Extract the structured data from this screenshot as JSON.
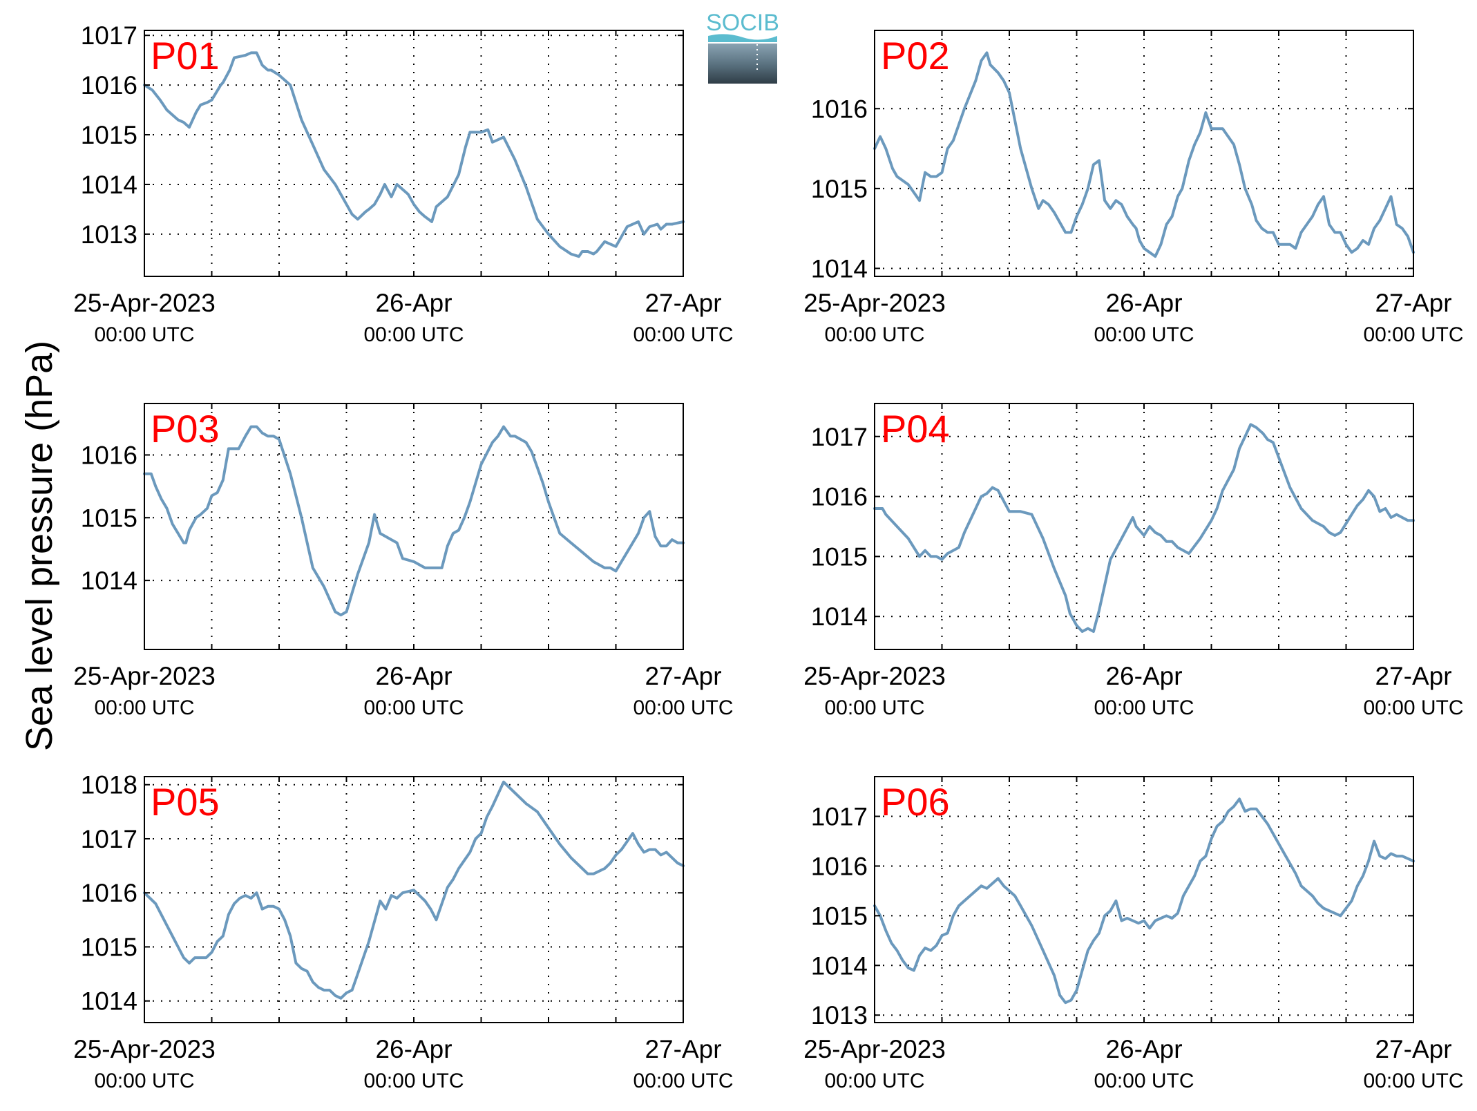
{
  "ylabel": "Sea level pressure (hPa)",
  "logo": {
    "text": "SOCIB",
    "color_top": "#5bbccf",
    "color_bottom": "#2f3d47"
  },
  "colors": {
    "line": "#6b99bd",
    "panel_label": "#ff0000",
    "axes": "#000000",
    "grid": "#000000"
  },
  "x_ticks": [
    {
      "value": 0,
      "label": "25-Apr-2023",
      "sub": "00:00 UTC"
    },
    {
      "value": 24,
      "label": "26-Apr",
      "sub": "00:00 UTC"
    },
    {
      "value": 48,
      "label": "27-Apr",
      "sub": "00:00 UTC"
    }
  ],
  "x_unit": "hours since 25-Apr-2023 00:00 UTC",
  "chart_data": [
    {
      "type": "line",
      "title": "P01",
      "xlim": [
        0,
        48
      ],
      "ylim": [
        1012.15,
        1017.1
      ],
      "yticks": [
        1013,
        1014,
        1015,
        1016,
        1017
      ],
      "grid": true,
      "x": [
        0,
        0.7,
        1.4,
        2,
        3,
        3.5,
        4,
        4.6,
        5,
        5.6,
        6,
        6.8,
        7,
        7.6,
        8,
        9,
        9.5,
        10,
        10.5,
        11,
        11.3,
        12,
        13,
        14,
        15,
        16,
        17,
        18,
        18.5,
        19,
        19.7,
        20,
        20.5,
        21,
        21.4,
        22,
        22.5,
        23,
        23.5,
        24,
        24.5,
        25,
        25.6,
        26,
        27,
        28,
        28.6,
        29,
        29.6,
        30,
        30.6,
        31,
        32,
        33,
        34,
        35,
        36,
        37,
        38,
        38.7,
        39,
        39.5,
        40,
        40.3,
        41,
        42,
        43,
        44,
        44.5,
        45,
        45.7,
        46,
        46.5,
        47,
        48
      ],
      "y": [
        1016.0,
        1015.9,
        1015.7,
        1015.5,
        1015.3,
        1015.25,
        1015.15,
        1015.45,
        1015.6,
        1015.65,
        1015.7,
        1016.0,
        1016.05,
        1016.3,
        1016.55,
        1016.6,
        1016.65,
        1016.65,
        1016.4,
        1016.3,
        1016.3,
        1016.2,
        1016.0,
        1015.3,
        1014.8,
        1014.3,
        1014.0,
        1013.6,
        1013.4,
        1013.3,
        1013.45,
        1013.5,
        1013.6,
        1013.8,
        1014.0,
        1013.75,
        1014.0,
        1013.9,
        1013.8,
        1013.6,
        1013.45,
        1013.35,
        1013.25,
        1013.55,
        1013.75,
        1014.2,
        1014.75,
        1015.05,
        1015.05,
        1015.05,
        1015.1,
        1014.85,
        1014.95,
        1014.5,
        1013.95,
        1013.3,
        1013.0,
        1012.75,
        1012.6,
        1012.55,
        1012.65,
        1012.65,
        1012.6,
        1012.65,
        1012.85,
        1012.75,
        1013.15,
        1013.25,
        1013.0,
        1013.15,
        1013.2,
        1013.1,
        1013.2,
        1013.2,
        1013.25
      ]
    },
    {
      "type": "line",
      "title": "P02",
      "xlim": [
        0,
        48
      ],
      "ylim": [
        1013.9,
        1016.98
      ],
      "yticks": [
        1014,
        1015,
        1016
      ],
      "grid": true,
      "x": [
        0,
        0.5,
        1,
        1.6,
        2,
        3,
        3.5,
        4,
        4.5,
        5,
        5.5,
        6,
        6.5,
        7,
        8,
        9,
        9.5,
        10,
        10.3,
        11,
        11.5,
        12,
        13,
        14,
        14.6,
        15,
        15.5,
        16,
        17,
        17.5,
        18,
        18.5,
        19,
        19.5,
        20,
        20.5,
        21,
        21.5,
        22,
        22.5,
        23,
        23.3,
        23.6,
        24,
        24.5,
        25,
        25.5,
        26,
        26.5,
        27,
        27.4,
        28,
        28.5,
        29,
        29.5,
        30,
        30.5,
        31,
        32,
        32.5,
        33,
        33.6,
        34,
        34.5,
        35,
        35.5,
        36,
        37,
        37.5,
        38,
        38.5,
        39,
        39.5,
        40,
        40.5,
        41,
        41.5,
        42,
        42.5,
        43,
        43.5,
        44,
        44.5,
        45,
        45.5,
        46,
        46.5,
        47,
        47.5,
        48
      ],
      "y": [
        1015.5,
        1015.65,
        1015.5,
        1015.25,
        1015.15,
        1015.05,
        1014.95,
        1014.85,
        1015.2,
        1015.15,
        1015.15,
        1015.2,
        1015.5,
        1015.6,
        1016.0,
        1016.35,
        1016.6,
        1016.7,
        1016.55,
        1016.45,
        1016.35,
        1016.2,
        1015.5,
        1015.0,
        1014.75,
        1014.85,
        1014.8,
        1014.7,
        1014.45,
        1014.45,
        1014.65,
        1014.8,
        1015.0,
        1015.3,
        1015.35,
        1014.85,
        1014.75,
        1014.85,
        1014.8,
        1014.65,
        1014.55,
        1014.5,
        1014.35,
        1014.25,
        1014.2,
        1014.15,
        1014.3,
        1014.55,
        1014.65,
        1014.9,
        1015.0,
        1015.35,
        1015.55,
        1015.7,
        1015.95,
        1015.75,
        1015.75,
        1015.75,
        1015.55,
        1015.3,
        1015.0,
        1014.8,
        1014.6,
        1014.5,
        1014.45,
        1014.45,
        1014.3,
        1014.3,
        1014.25,
        1014.45,
        1014.55,
        1014.65,
        1014.8,
        1014.9,
        1014.55,
        1014.45,
        1014.45,
        1014.3,
        1014.2,
        1014.25,
        1014.35,
        1014.3,
        1014.5,
        1014.6,
        1014.75,
        1014.9,
        1014.55,
        1014.5,
        1014.4,
        1014.2
      ]
    },
    {
      "type": "line",
      "title": "P03",
      "xlim": [
        0,
        48
      ],
      "ylim": [
        1012.9,
        1016.82
      ],
      "yticks": [
        1014,
        1015,
        1016
      ],
      "grid": true,
      "x": [
        0,
        0.6,
        1,
        1.5,
        2,
        2.5,
        3,
        3.5,
        3.7,
        4,
        4.6,
        5,
        5.6,
        6,
        6.5,
        7,
        7.5,
        8,
        8.4,
        9,
        9.5,
        10,
        10.5,
        11,
        11.5,
        12,
        13,
        14,
        15,
        16,
        17,
        17.5,
        18,
        18.5,
        19,
        19.5,
        20,
        20.5,
        21,
        22,
        22.5,
        23,
        24,
        24.5,
        25,
        26,
        26.5,
        27,
        27.5,
        28,
        28.5,
        29,
        30,
        31,
        31.5,
        32,
        32.6,
        33,
        33.5,
        34,
        34.5,
        35,
        35.5,
        36,
        36.5,
        37,
        38,
        39,
        40,
        41,
        41.5,
        42,
        42.5,
        43,
        43.5,
        44,
        44.5,
        45,
        45.5,
        46,
        46.5,
        47,
        47.5,
        48
      ],
      "y": [
        1015.7,
        1015.7,
        1015.5,
        1015.3,
        1015.15,
        1014.9,
        1014.75,
        1014.6,
        1014.6,
        1014.8,
        1015.0,
        1015.05,
        1015.15,
        1015.35,
        1015.4,
        1015.6,
        1016.1,
        1016.1,
        1016.1,
        1016.3,
        1016.45,
        1016.45,
        1016.35,
        1016.3,
        1016.3,
        1016.25,
        1015.7,
        1015.0,
        1014.2,
        1013.9,
        1013.5,
        1013.45,
        1013.5,
        1013.8,
        1014.1,
        1014.35,
        1014.6,
        1015.05,
        1014.75,
        1014.65,
        1014.6,
        1014.35,
        1014.3,
        1014.25,
        1014.2,
        1014.2,
        1014.2,
        1014.55,
        1014.75,
        1014.8,
        1015.0,
        1015.25,
        1015.85,
        1016.2,
        1016.3,
        1016.45,
        1016.3,
        1016.3,
        1016.25,
        1016.2,
        1016.05,
        1015.8,
        1015.55,
        1015.25,
        1015.0,
        1014.75,
        1014.6,
        1014.45,
        1014.3,
        1014.2,
        1014.2,
        1014.15,
        1014.3,
        1014.45,
        1014.6,
        1014.75,
        1015.0,
        1015.1,
        1014.7,
        1014.55,
        1014.55,
        1014.65,
        1014.6,
        1014.6
      ]
    },
    {
      "type": "line",
      "title": "P04",
      "xlim": [
        0,
        48
      ],
      "ylim": [
        1013.45,
        1017.55
      ],
      "yticks": [
        1014,
        1015,
        1016,
        1017
      ],
      "grid": true,
      "x": [
        0,
        0.7,
        1,
        2,
        3,
        3.5,
        4,
        4.5,
        5,
        5.5,
        6,
        6.5,
        7,
        7.5,
        8,
        9,
        9.5,
        10,
        10.5,
        11,
        12,
        13,
        14,
        15,
        16,
        17,
        17.4,
        18,
        18.5,
        19,
        19.5,
        20,
        21,
        22,
        23,
        23.3,
        24,
        24.5,
        25,
        25.5,
        26,
        26.5,
        27,
        28,
        29,
        30,
        30.5,
        31,
        32,
        32.5,
        33,
        33.5,
        34,
        34.6,
        35,
        35.5,
        36,
        37,
        38,
        39,
        40,
        40.5,
        41,
        41.5,
        42,
        42.5,
        43,
        43.5,
        44,
        44.5,
        45,
        45.5,
        46,
        46.5,
        47,
        47.5,
        48
      ],
      "y": [
        1015.8,
        1015.8,
        1015.7,
        1015.5,
        1015.3,
        1015.15,
        1015.0,
        1015.1,
        1015.0,
        1015.0,
        1014.95,
        1015.05,
        1015.1,
        1015.15,
        1015.4,
        1015.8,
        1016.0,
        1016.05,
        1016.15,
        1016.1,
        1015.75,
        1015.75,
        1015.7,
        1015.3,
        1014.8,
        1014.35,
        1014.05,
        1013.85,
        1013.75,
        1013.8,
        1013.75,
        1014.1,
        1014.95,
        1015.3,
        1015.65,
        1015.5,
        1015.35,
        1015.5,
        1015.4,
        1015.35,
        1015.25,
        1015.25,
        1015.15,
        1015.05,
        1015.3,
        1015.6,
        1015.8,
        1016.1,
        1016.45,
        1016.8,
        1017.0,
        1017.2,
        1017.15,
        1017.05,
        1016.95,
        1016.9,
        1016.65,
        1016.15,
        1015.8,
        1015.6,
        1015.5,
        1015.4,
        1015.35,
        1015.4,
        1015.55,
        1015.7,
        1015.85,
        1015.95,
        1016.1,
        1016.0,
        1015.75,
        1015.8,
        1015.65,
        1015.7,
        1015.65,
        1015.6,
        1015.6
      ]
    },
    {
      "type": "line",
      "title": "P05",
      "xlim": [
        0,
        48
      ],
      "ylim": [
        1013.6,
        1018.15
      ],
      "yticks": [
        1014,
        1015,
        1016,
        1017,
        1018
      ],
      "grid": true,
      "x": [
        0,
        0.5,
        1,
        2,
        3,
        3.5,
        4,
        4.5,
        5,
        5.5,
        6,
        6.5,
        7,
        7.5,
        8,
        8.5,
        9,
        9.5,
        10,
        10.5,
        11,
        11.5,
        12,
        12.5,
        13,
        13.5,
        14,
        14.5,
        15,
        15.5,
        16,
        16.5,
        17,
        17.5,
        18,
        18.5,
        19,
        19.5,
        20,
        21,
        21.5,
        22,
        22.5,
        23,
        24,
        24.5,
        25,
        25.5,
        26,
        26.5,
        27,
        27.5,
        28,
        28.5,
        29,
        29.5,
        30,
        30.5,
        31,
        32,
        32.5,
        33,
        34,
        35,
        36,
        37,
        38,
        39,
        39.5,
        40,
        40.5,
        41,
        41.5,
        42,
        42.5,
        43,
        43.5,
        44,
        44.5,
        45,
        45.5,
        46,
        46.5,
        47,
        47.5,
        48
      ],
      "y": [
        1016.0,
        1015.9,
        1015.8,
        1015.4,
        1015.0,
        1014.8,
        1014.7,
        1014.8,
        1014.8,
        1014.8,
        1014.9,
        1015.1,
        1015.2,
        1015.6,
        1015.8,
        1015.9,
        1015.95,
        1015.9,
        1016.0,
        1015.7,
        1015.75,
        1015.75,
        1015.7,
        1015.5,
        1015.2,
        1014.7,
        1014.6,
        1014.55,
        1014.35,
        1014.25,
        1014.2,
        1014.2,
        1014.1,
        1014.05,
        1014.15,
        1014.2,
        1014.5,
        1014.8,
        1015.1,
        1015.85,
        1015.7,
        1015.95,
        1015.9,
        1016.0,
        1016.05,
        1015.95,
        1015.85,
        1015.7,
        1015.5,
        1015.8,
        1016.1,
        1016.25,
        1016.45,
        1016.6,
        1016.75,
        1017.0,
        1017.1,
        1017.4,
        1017.6,
        1018.05,
        1017.95,
        1017.85,
        1017.65,
        1017.5,
        1017.2,
        1016.9,
        1016.65,
        1016.45,
        1016.35,
        1016.35,
        1016.4,
        1016.45,
        1016.55,
        1016.7,
        1016.8,
        1016.95,
        1017.1,
        1016.9,
        1016.75,
        1016.8,
        1016.8,
        1016.7,
        1016.75,
        1016.65,
        1016.55,
        1016.5
      ]
    },
    {
      "type": "line",
      "title": "P06",
      "xlim": [
        0,
        48
      ],
      "ylim": [
        1012.85,
        1017.8
      ],
      "yticks": [
        1013,
        1014,
        1015,
        1016,
        1017
      ],
      "grid": true,
      "x": [
        0,
        0.5,
        1,
        1.5,
        2,
        2.5,
        3,
        3.5,
        4,
        4.5,
        5,
        5.5,
        6,
        6.5,
        7,
        7.5,
        8,
        8.5,
        9,
        9.5,
        10,
        10.5,
        11,
        11.5,
        12,
        12.5,
        13,
        14,
        15,
        16,
        16.5,
        17,
        17.5,
        18,
        18.5,
        19,
        19.5,
        20,
        20.5,
        21,
        21.5,
        22,
        22.5,
        23,
        23.5,
        24,
        24.5,
        25,
        25.5,
        26,
        26.5,
        27,
        27.5,
        28,
        28.5,
        29,
        29.5,
        30,
        30.5,
        31,
        31.5,
        32,
        32.5,
        33,
        33.5,
        34,
        34.5,
        35,
        35.5,
        36,
        36.5,
        37,
        37.5,
        38,
        38.5,
        39,
        39.5,
        40,
        40.5,
        41,
        41.5,
        42,
        42.5,
        43,
        43.5,
        44,
        44.5,
        45,
        45.5,
        46,
        46.5,
        47,
        47.5,
        48
      ],
      "y": [
        1015.2,
        1015.0,
        1014.7,
        1014.45,
        1014.3,
        1014.1,
        1013.95,
        1013.9,
        1014.2,
        1014.35,
        1014.3,
        1014.4,
        1014.6,
        1014.65,
        1015.0,
        1015.2,
        1015.3,
        1015.4,
        1015.5,
        1015.6,
        1015.55,
        1015.65,
        1015.75,
        1015.6,
        1015.5,
        1015.4,
        1015.2,
        1014.8,
        1014.3,
        1013.8,
        1013.4,
        1013.25,
        1013.3,
        1013.5,
        1013.9,
        1014.3,
        1014.5,
        1014.65,
        1015.0,
        1015.1,
        1015.3,
        1014.9,
        1014.95,
        1014.9,
        1014.85,
        1014.9,
        1014.75,
        1014.9,
        1014.95,
        1015.0,
        1014.95,
        1015.05,
        1015.4,
        1015.6,
        1015.8,
        1016.1,
        1016.2,
        1016.55,
        1016.8,
        1016.9,
        1017.1,
        1017.2,
        1017.35,
        1017.1,
        1017.15,
        1017.15,
        1017.0,
        1016.85,
        1016.65,
        1016.45,
        1016.25,
        1016.05,
        1015.85,
        1015.6,
        1015.5,
        1015.4,
        1015.25,
        1015.15,
        1015.1,
        1015.05,
        1015.0,
        1015.15,
        1015.3,
        1015.6,
        1015.8,
        1016.1,
        1016.5,
        1016.2,
        1016.15,
        1016.25,
        1016.2,
        1016.2,
        1016.15,
        1016.1
      ]
    }
  ]
}
